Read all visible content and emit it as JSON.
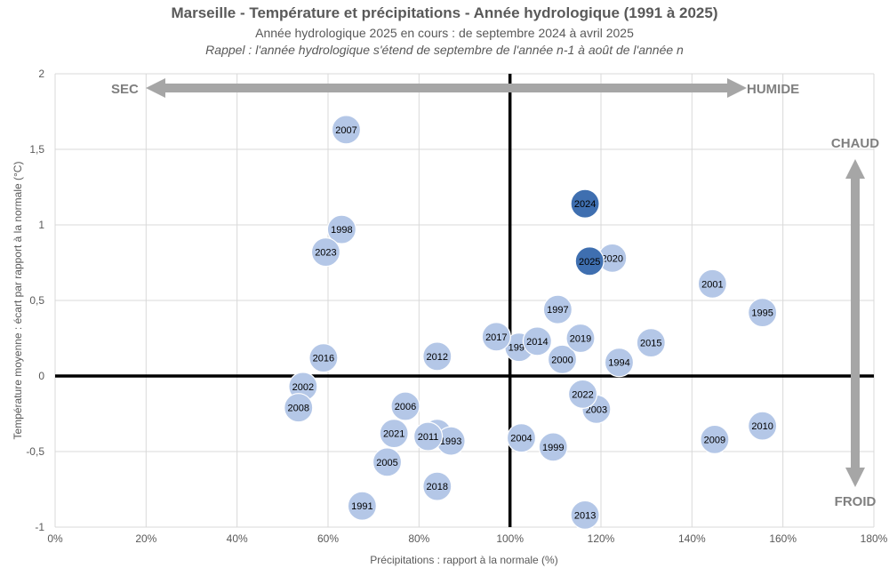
{
  "chart_data": {
    "type": "scatter",
    "title": "Marseille - Température et précipitations - Année hydrologique (1991 à 2025)",
    "subtitle": "Année hydrologique 2025 en cours : de septembre 2024 à avril 2025",
    "subtitle2": "Rappel : l'année hydrologique s'étend de septembre de l'année n-1 à août de l'année n",
    "xlabel": "Précipitations : rapport à la normale (%)",
    "ylabel": "Température moyenne : écart par rapport à la normale (°C)",
    "xlim": [
      0,
      180
    ],
    "ylim": [
      -1,
      2
    ],
    "x_ticks": [
      0,
      20,
      40,
      60,
      80,
      100,
      120,
      140,
      160,
      180
    ],
    "x_tick_labels": [
      "0%",
      "20%",
      "40%",
      "60%",
      "80%",
      "100%",
      "120%",
      "140%",
      "160%",
      "180%"
    ],
    "y_ticks": [
      -1,
      -0.5,
      0,
      0.5,
      1,
      1.5,
      2
    ],
    "y_tick_labels": [
      "-1",
      "-0,5",
      "0",
      "0,5",
      "1",
      "1,5",
      "2"
    ],
    "grid": true,
    "annotations": {
      "sec": "SEC",
      "humide": "HUMIDE",
      "chaud": "CHAUD",
      "froid": "FROID"
    },
    "colors": {
      "point": "#b4c7e7",
      "highlight": "#3f6fb0",
      "axis": "#000000",
      "arrow": "#a6a6a6",
      "grid": "#d9d9d9",
      "text": "#595959"
    },
    "points": [
      {
        "year": "1991",
        "x": 67.5,
        "y": -0.86
      },
      {
        "year": "1992",
        "x": 84.0,
        "y": -0.38
      },
      {
        "year": "1993",
        "x": 87.0,
        "y": -0.43
      },
      {
        "year": "1994",
        "x": 124.0,
        "y": 0.09
      },
      {
        "year": "1995",
        "x": 155.5,
        "y": 0.42
      },
      {
        "year": "1996",
        "x": 102.0,
        "y": 0.19
      },
      {
        "year": "1997",
        "x": 110.5,
        "y": 0.44
      },
      {
        "year": "1998",
        "x": 63.0,
        "y": 0.97
      },
      {
        "year": "1999",
        "x": 109.5,
        "y": -0.47
      },
      {
        "year": "2000",
        "x": 111.5,
        "y": 0.11
      },
      {
        "year": "2001",
        "x": 144.5,
        "y": 0.61
      },
      {
        "year": "2002",
        "x": 54.5,
        "y": -0.07
      },
      {
        "year": "2003",
        "x": 119.0,
        "y": -0.22
      },
      {
        "year": "2004",
        "x": 102.5,
        "y": -0.41
      },
      {
        "year": "2005",
        "x": 73.0,
        "y": -0.57
      },
      {
        "year": "2006",
        "x": 77.0,
        "y": -0.2
      },
      {
        "year": "2007",
        "x": 64.0,
        "y": 1.63
      },
      {
        "year": "2008",
        "x": 53.5,
        "y": -0.21
      },
      {
        "year": "2009",
        "x": 145.0,
        "y": -0.42
      },
      {
        "year": "2010",
        "x": 155.5,
        "y": -0.33
      },
      {
        "year": "2011",
        "x": 82.0,
        "y": -0.4
      },
      {
        "year": "2012",
        "x": 84.0,
        "y": 0.13
      },
      {
        "year": "2013",
        "x": 116.5,
        "y": -0.92
      },
      {
        "year": "2014",
        "x": 106.0,
        "y": 0.23
      },
      {
        "year": "2015",
        "x": 131.0,
        "y": 0.22
      },
      {
        "year": "2016",
        "x": 59.0,
        "y": 0.12
      },
      {
        "year": "2017",
        "x": 97.0,
        "y": 0.26
      },
      {
        "year": "2018",
        "x": 84.0,
        "y": -0.73
      },
      {
        "year": "2019",
        "x": 115.5,
        "y": 0.25
      },
      {
        "year": "2020",
        "x": 122.5,
        "y": 0.78
      },
      {
        "year": "2021",
        "x": 74.5,
        "y": -0.38
      },
      {
        "year": "2022",
        "x": 116.0,
        "y": -0.12
      },
      {
        "year": "2023",
        "x": 59.5,
        "y": 0.82
      },
      {
        "year": "2024",
        "x": 116.5,
        "y": 1.14,
        "highlight": true
      },
      {
        "year": "2025",
        "x": 117.5,
        "y": 0.76,
        "highlight": true
      }
    ]
  }
}
